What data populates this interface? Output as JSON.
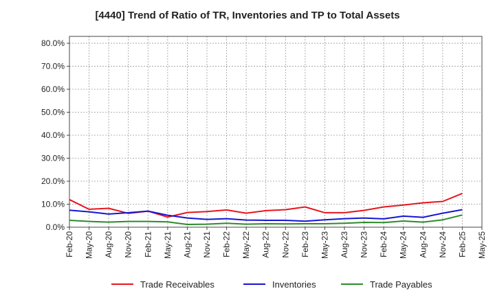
{
  "chart_data": {
    "type": "line",
    "title": "[4440]  Trend of Ratio of TR, Inventories and TP to Total Assets",
    "xlabel": "",
    "ylabel": "",
    "ylim": [
      0,
      83
    ],
    "yticks": [
      "0.0%",
      "10.0%",
      "20.0%",
      "30.0%",
      "40.0%",
      "50.0%",
      "60.0%",
      "70.0%",
      "80.0%"
    ],
    "ytick_values": [
      0,
      10,
      20,
      30,
      40,
      50,
      60,
      70,
      80
    ],
    "xticks": [
      "Feb-20",
      "May-20",
      "Aug-20",
      "Nov-20",
      "Feb-21",
      "May-21",
      "Aug-21",
      "Nov-21",
      "Feb-22",
      "May-22",
      "Aug-22",
      "Nov-22",
      "Feb-23",
      "May-23",
      "Aug-23",
      "Nov-23",
      "Feb-24",
      "May-24",
      "Aug-24",
      "Nov-24",
      "Feb-25",
      "May-25"
    ],
    "grid": true,
    "legend_position": "bottom",
    "series": [
      {
        "name": "Trade Receivables",
        "color": "#e8141b",
        "values": [
          12.0,
          7.8,
          8.2,
          6.0,
          7.0,
          4.4,
          6.4,
          6.8,
          7.5,
          6.1,
          7.2,
          7.6,
          8.8,
          6.3,
          6.3,
          7.3,
          8.8,
          9.6,
          10.6,
          11.2,
          14.7
        ]
      },
      {
        "name": "Inventories",
        "color": "#1414d2",
        "values": [
          7.4,
          6.7,
          5.7,
          6.3,
          7.0,
          5.2,
          4.0,
          3.4,
          3.7,
          3.1,
          3.0,
          3.0,
          2.6,
          3.2,
          3.7,
          4.0,
          3.6,
          4.8,
          4.3,
          6.1,
          7.6
        ]
      },
      {
        "name": "Trade Payables",
        "color": "#2a8a2a",
        "values": [
          3.0,
          2.5,
          2.2,
          2.5,
          2.5,
          2.3,
          1.2,
          1.3,
          1.7,
          1.3,
          1.5,
          1.4,
          1.5,
          1.5,
          1.7,
          2.1,
          2.0,
          2.7,
          2.2,
          3.2,
          5.3
        ]
      }
    ]
  }
}
